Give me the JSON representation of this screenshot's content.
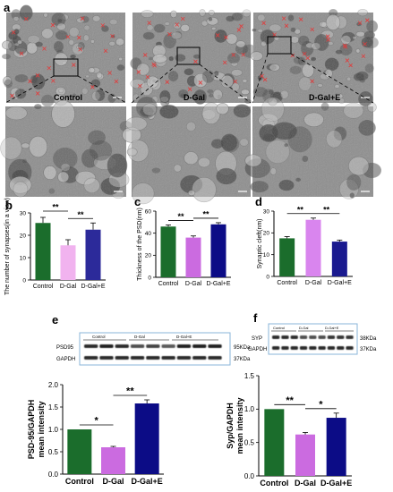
{
  "panel_letters": [
    "a",
    "b",
    "c",
    "d",
    "e",
    "f"
  ],
  "em": {
    "top_labels": [
      "Control",
      "D-Gal",
      "D-Gal+E"
    ],
    "tem_colors": {
      "bg": "#8d8d8d",
      "dark": "#3e3e3e",
      "light": "#c4c4c4",
      "synapse_marker": "#e23c3c"
    }
  },
  "blots": {
    "e": {
      "groups": [
        "Control",
        "D-Gal",
        "D-Gal+E"
      ],
      "rows": [
        "PSD95",
        "GAPDH"
      ],
      "kda": [
        "95KDa",
        "37KDa"
      ]
    },
    "f": {
      "groups": [
        "Control",
        "D-Gal",
        "D-Gal+E"
      ],
      "rows": [
        "SYP",
        "GAPDH"
      ],
      "kda": [
        "38KDa",
        "37KDa"
      ]
    }
  },
  "chart_data": [
    {
      "panel": "b",
      "type": "bar",
      "categories": [
        "Control",
        "D-Gal",
        "D-Gal+E"
      ],
      "values": [
        25.5,
        15.5,
        22.5
      ],
      "errors": [
        2.5,
        2.5,
        3.0
      ],
      "ylabel": "The number of synapses(in a view)",
      "ylim": [
        0,
        30
      ],
      "yticks": [
        0,
        10,
        20,
        30
      ],
      "sig": [
        {
          "from": 0,
          "to": 1,
          "label": "**"
        },
        {
          "from": 1,
          "to": 2,
          "label": "**"
        }
      ],
      "colors": [
        "#1b6d2c",
        "#f1b3ef",
        "#2c2a9a"
      ]
    },
    {
      "panel": "c",
      "type": "bar",
      "categories": [
        "Control",
        "D-Gal",
        "D-Gal+E"
      ],
      "values": [
        46,
        36,
        48
      ],
      "errors": [
        1.5,
        1.5,
        1.5
      ],
      "ylabel": "Thickness of the PSD(nm)",
      "ylim": [
        0,
        60
      ],
      "yticks": [
        0,
        20,
        40,
        60
      ],
      "sig": [
        {
          "from": 0,
          "to": 1,
          "label": "**"
        },
        {
          "from": 1,
          "to": 2,
          "label": "**"
        }
      ],
      "colors": [
        "#1b6d2c",
        "#cb6be0",
        "#0c0c86"
      ]
    },
    {
      "panel": "d",
      "type": "bar",
      "categories": [
        "Control",
        "D-Gal",
        "D-Gal+E"
      ],
      "values": [
        17.5,
        26,
        16
      ],
      "errors": [
        0.8,
        0.8,
        0.7
      ],
      "ylabel": "Synaptic cleft(nm)",
      "ylim": [
        0,
        30
      ],
      "yticks": [
        0,
        10,
        20,
        30
      ],
      "sig": [
        {
          "from": 0,
          "to": 1,
          "label": "**"
        },
        {
          "from": 1,
          "to": 2,
          "label": "**"
        }
      ],
      "colors": [
        "#1b6d2c",
        "#d985ee",
        "#1a1a8f"
      ]
    },
    {
      "panel": "e",
      "type": "bar",
      "categories": [
        "Control",
        "D-Gal",
        "D-Gal+E"
      ],
      "values": [
        1.0,
        0.6,
        1.58
      ],
      "errors": [
        0,
        0.02,
        0.08
      ],
      "ylabel": "PSD-95/GAPDH mean intensity",
      "ylim": [
        0,
        2.0
      ],
      "yticks": [
        0.0,
        0.5,
        1.0,
        1.5,
        2.0
      ],
      "sig": [
        {
          "from": 0,
          "to": 1,
          "label": "*"
        },
        {
          "from": 1,
          "to": 2,
          "label": "**"
        }
      ],
      "colors": [
        "#1b6d2c",
        "#cb6be0",
        "#0c0c86"
      ]
    },
    {
      "panel": "f",
      "type": "bar",
      "categories": [
        "Control",
        "D-Gal",
        "D-Gal+E"
      ],
      "values": [
        1.0,
        0.62,
        0.87
      ],
      "errors": [
        0,
        0.03,
        0.07
      ],
      "ylabel": "Syp/GAPDH mean intensity",
      "ylim": [
        0,
        1.5
      ],
      "yticks": [
        0.0,
        0.5,
        1.0,
        1.5
      ],
      "sig": [
        {
          "from": 0,
          "to": 1,
          "label": "**"
        },
        {
          "from": 1,
          "to": 2,
          "label": "*"
        }
      ],
      "colors": [
        "#1b6d2c",
        "#cb6be0",
        "#0c0c86"
      ]
    }
  ]
}
